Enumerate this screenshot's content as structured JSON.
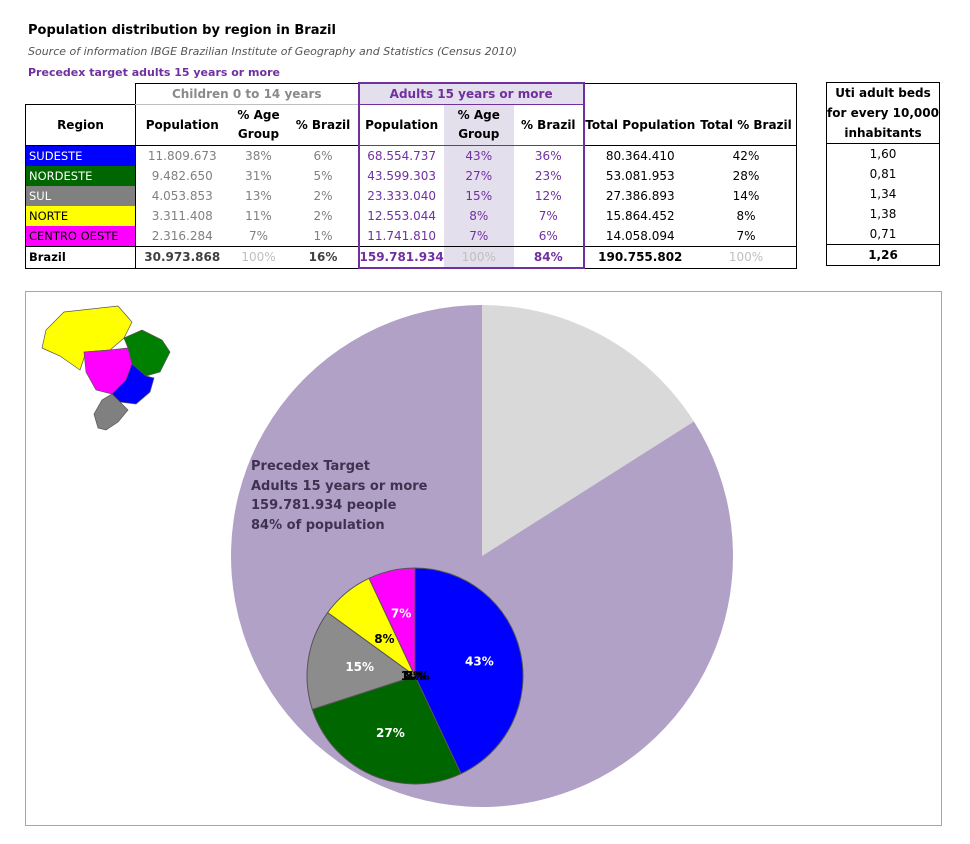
{
  "header": {
    "title": "Population distribution by region in Brazil",
    "source": "Source of information IBGE Brazilian Institute of Geography and Statistics (Census 2010)",
    "target_note": "Precedex target adults 15 years or more"
  },
  "table": {
    "group_children": "Children 0 to 14 years",
    "group_adults": "Adults 15 years or more",
    "col_region": "Region",
    "col_population": "Population",
    "col_age_group": "% Age Group",
    "col_brazil": "% Brazil",
    "col_total_population": "Total Population",
    "col_total_brazil": "Total % Brazil",
    "rows": [
      {
        "region": "SUDESTE",
        "color": "#0000ff",
        "text_color": "#ffffff",
        "c_pop": "11.809.673",
        "c_age": "38%",
        "c_br": "6%",
        "a_pop": "68.554.737",
        "a_age": "43%",
        "a_br": "36%",
        "total": "80.364.410",
        "total_br": "42%"
      },
      {
        "region": "NORDESTE",
        "color": "#006600",
        "text_color": "#ffffff",
        "c_pop": "9.482.650",
        "c_age": "31%",
        "c_br": "5%",
        "a_pop": "43.599.303",
        "a_age": "27%",
        "a_br": "23%",
        "total": "53.081.953",
        "total_br": "28%"
      },
      {
        "region": "SUL",
        "color": "#808080",
        "text_color": "#ffffff",
        "c_pop": "4.053.853",
        "c_age": "13%",
        "c_br": "2%",
        "a_pop": "23.333.040",
        "a_age": "15%",
        "a_br": "12%",
        "total": "27.386.893",
        "total_br": "14%"
      },
      {
        "region": "NORTE",
        "color": "#ffff00",
        "text_color": "#000000",
        "c_pop": "3.311.408",
        "c_age": "11%",
        "c_br": "2%",
        "a_pop": "12.553.044",
        "a_age": "8%",
        "a_br": "7%",
        "total": "15.864.452",
        "total_br": "8%"
      },
      {
        "region": "CENTRO OESTE",
        "color": "#ff00ff",
        "text_color": "#000000",
        "c_pop": "2.316.284",
        "c_age": "7%",
        "c_br": "1%",
        "a_pop": "11.741.810",
        "a_age": "7%",
        "a_br": "6%",
        "total": "14.058.094",
        "total_br": "7%"
      }
    ],
    "total_row": {
      "region": "Brazil",
      "c_pop": "30.973.868",
      "c_age": "100%",
      "c_br": "16%",
      "a_pop": "159.781.934",
      "a_age": "100%",
      "a_br": "84%",
      "total": "190.755.802",
      "total_br": "100%"
    }
  },
  "uti": {
    "header": "Uti adult beds for every 10,000 inhabitants",
    "values": [
      "1,60",
      "0,81",
      "1,34",
      "1,38",
      "0,71",
      "1,26"
    ]
  },
  "chart_label": {
    "line1": "Precedex Target",
    "line2": "Adults 15 years or more",
    "line3": "159.781.934 people",
    "line4": "84% of population"
  },
  "chart_data": [
    {
      "type": "pie",
      "categories": [
        "Children 0 to 14 years",
        "Adults 15 years or more"
      ],
      "values": [
        16,
        84
      ],
      "colors": [
        "#d9d9d9",
        "#b2a1c7"
      ]
    },
    {
      "type": "pie",
      "categories": [
        "SUDESTE",
        "NORDESTE",
        "SUL",
        "NORTE",
        "CENTRO OESTE"
      ],
      "values": [
        43,
        27,
        15,
        8,
        7
      ],
      "labels": [
        "43%",
        "27%",
        "15%",
        "8%",
        "7%"
      ],
      "colors": [
        "#0000ff",
        "#006600",
        "#8c8c8c",
        "#ffff00",
        "#ff00ff"
      ]
    }
  ]
}
